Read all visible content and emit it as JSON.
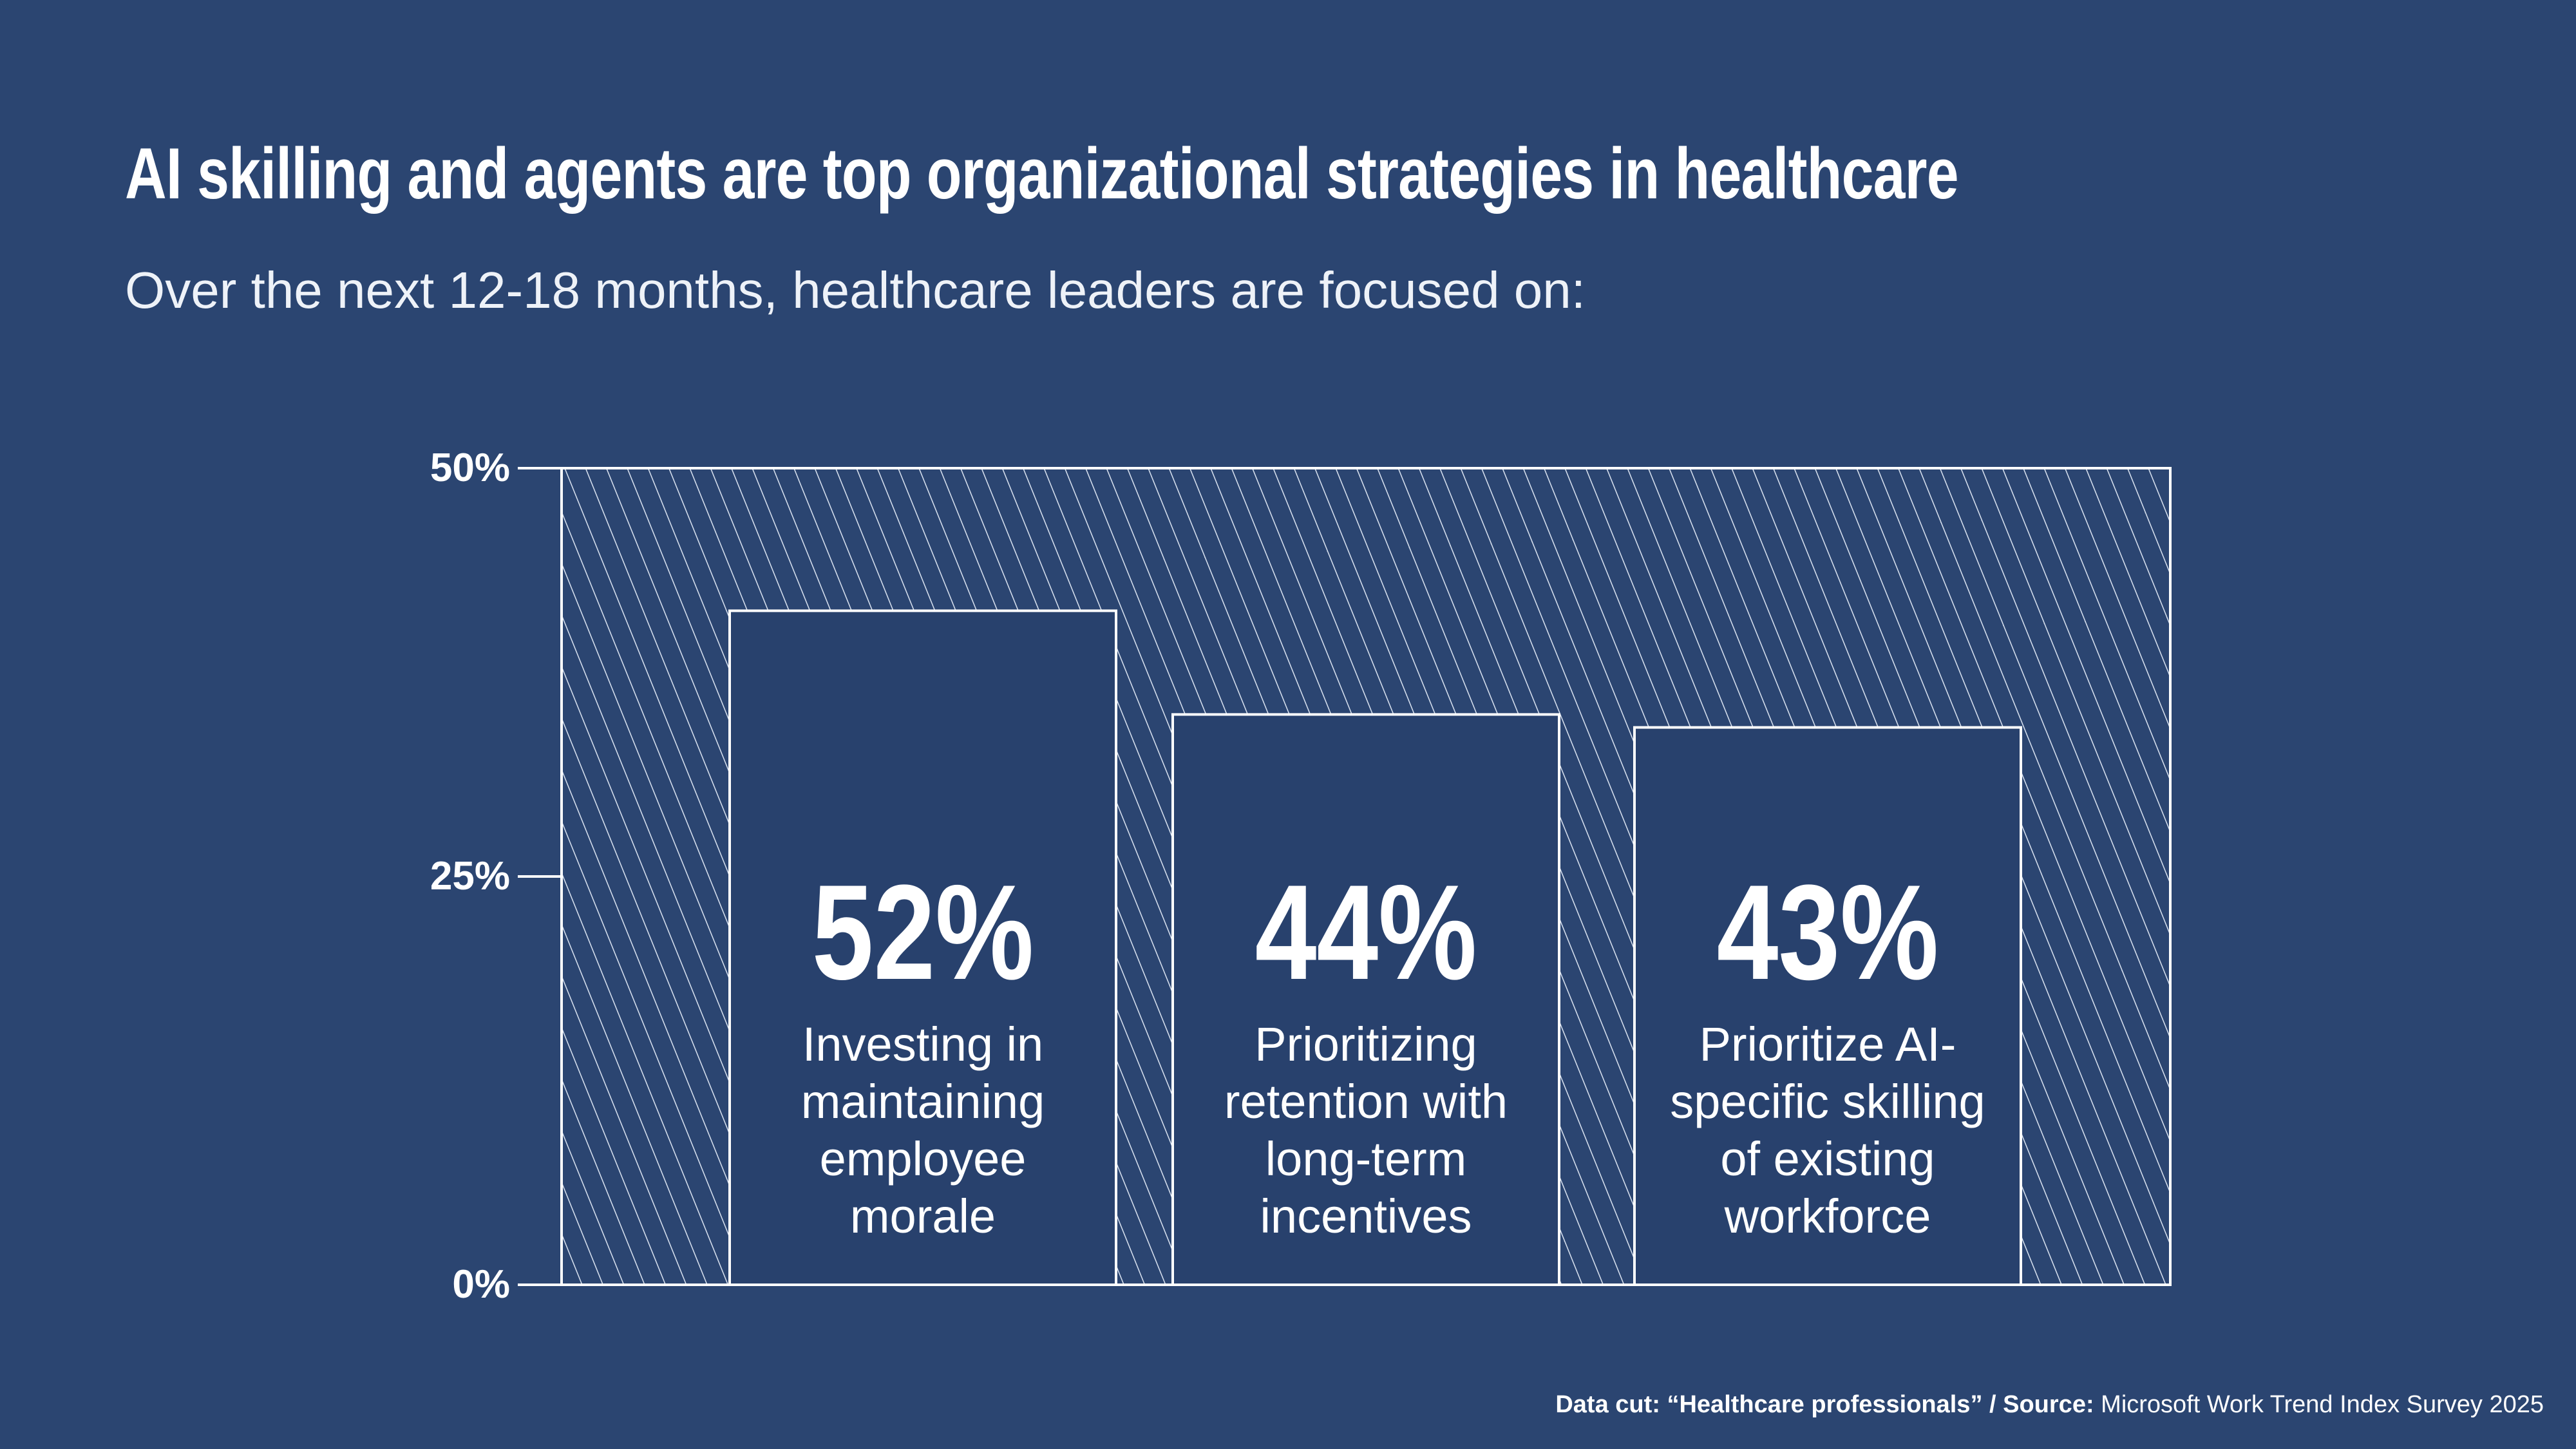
{
  "title": "AI skilling and agents are top organizational strategies in healthcare",
  "subtitle": "Over the next 12-18 months, healthcare leaders are focused on:",
  "footer": {
    "data_cut_label": "Data cut:",
    "data_cut_value": "“Healthcare professionals” /",
    "source_label": "Source:",
    "source_value": "Microsoft Work Trend Index Survey 2025"
  },
  "colors": {
    "background": "#2b4571",
    "bar": "#28416d",
    "line": "#ffffff"
  },
  "chart_data": {
    "type": "bar",
    "title": "AI skilling and agents are top organizational strategies in healthcare",
    "xlabel": "",
    "ylabel": "",
    "ylim": [
      0,
      50
    ],
    "yticks": [
      "0%",
      "25%",
      "50%"
    ],
    "ytick_values": [
      0,
      25,
      50
    ],
    "grid": false,
    "categories": [
      [
        "Investing in",
        "maintaining",
        "employee",
        "morale"
      ],
      [
        "Prioritizing",
        "retention with",
        "long-term",
        "incentives"
      ],
      [
        "Prioritize AI-",
        "specific skilling",
        "of existing",
        "workforce"
      ]
    ],
    "values": [
      52,
      44,
      43
    ],
    "value_labels": [
      "52%",
      "44%",
      "43%"
    ]
  }
}
